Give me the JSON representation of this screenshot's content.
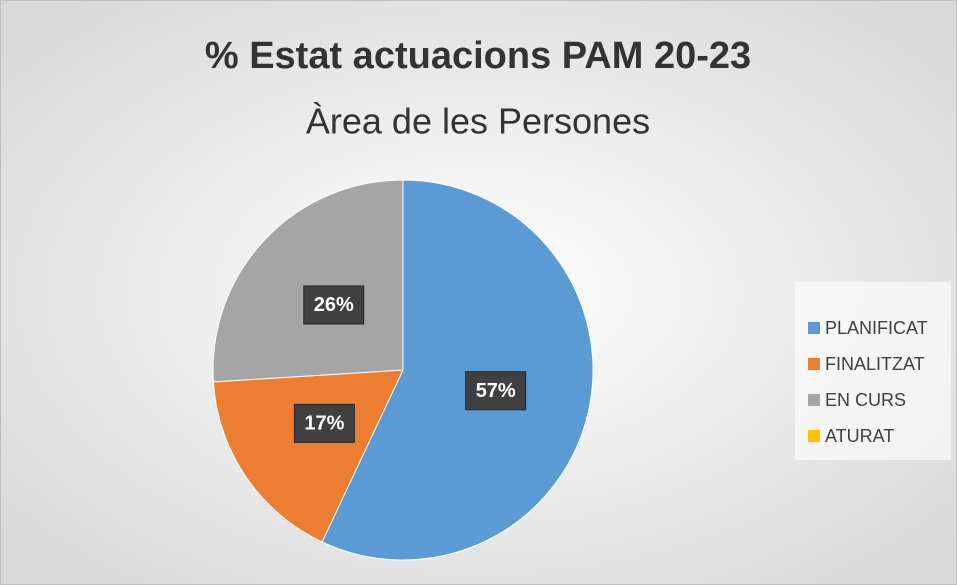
{
  "chart_data": {
    "type": "pie",
    "title": "% Estat actuacions PAM 20-23",
    "subtitle": "Àrea de les Persones",
    "categories": [
      "PLANIFICAT",
      "FINALITZAT",
      "EN CURS",
      "ATURAT"
    ],
    "values": [
      57,
      17,
      26,
      0
    ],
    "value_labels": [
      "57%",
      "17%",
      "26%",
      null
    ],
    "colors": [
      "#5b9bd5",
      "#ed7d31",
      "#a5a5a5",
      "#ffc000"
    ],
    "legend": "right"
  }
}
